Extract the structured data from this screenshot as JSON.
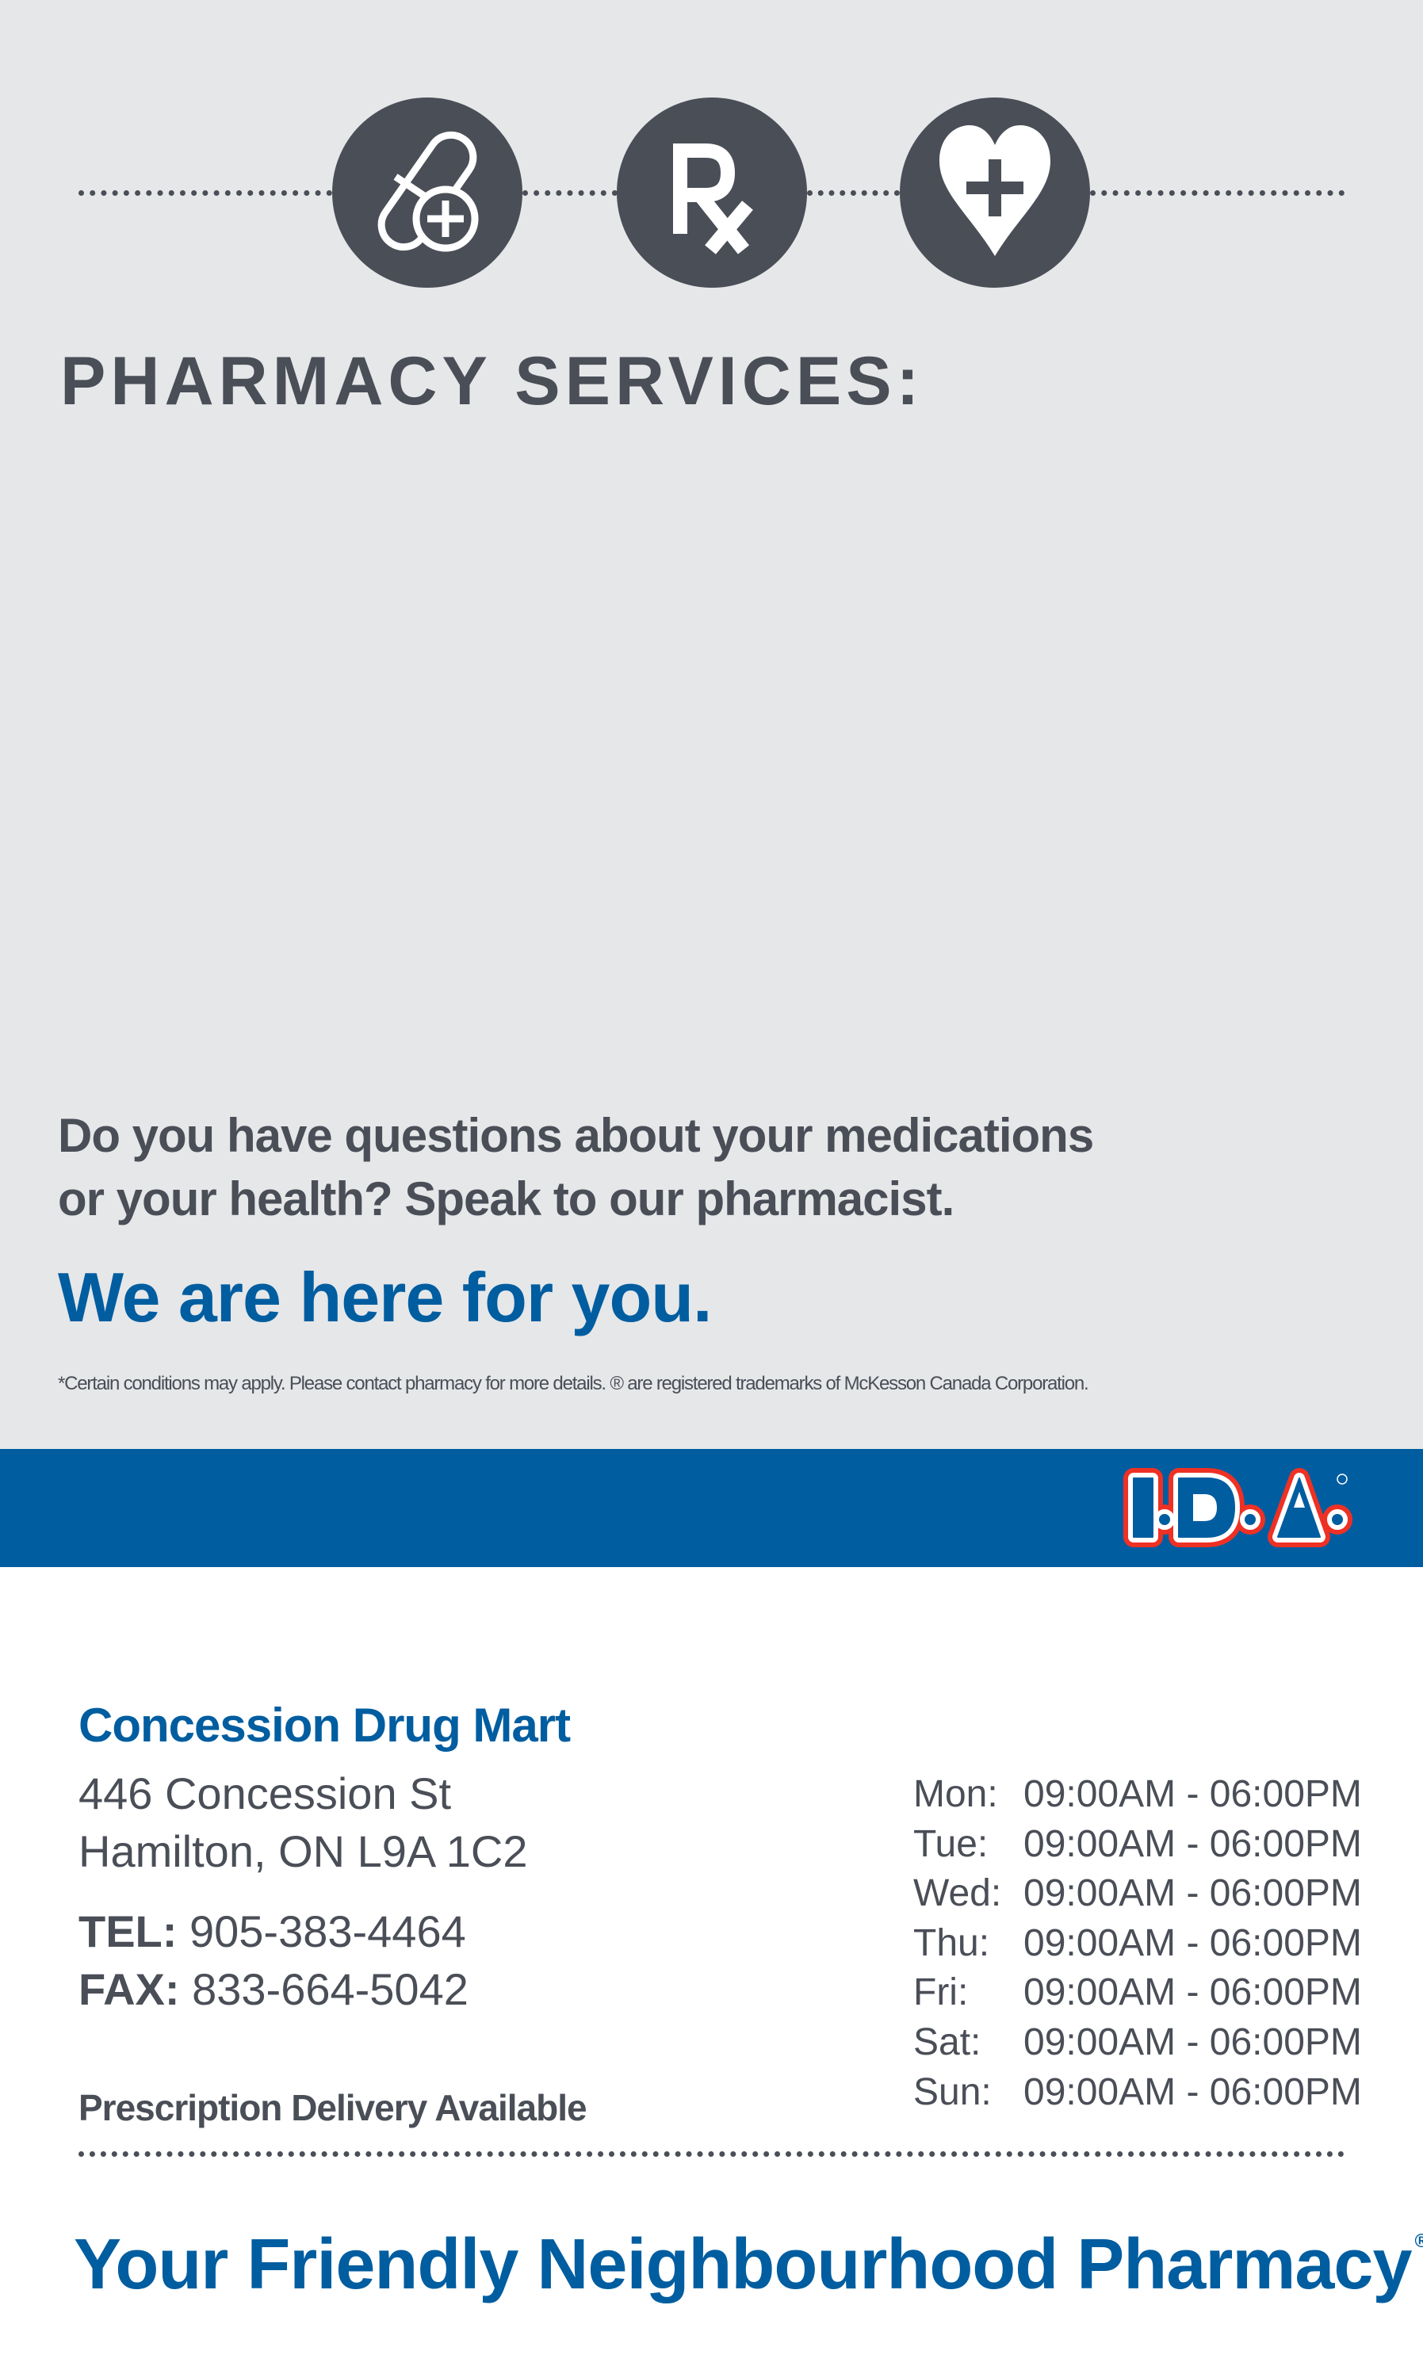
{
  "header": {
    "icons": [
      "pill-plus-icon",
      "rx-icon",
      "heart-plus-icon"
    ],
    "title": "PHARMACY SERVICES:"
  },
  "message": {
    "line1": "Do you have questions about your medications",
    "line2": "or your health? Speak to our pharmacist.",
    "highlight": "We are here for you.",
    "disclaimer": "*Certain conditions may apply. Please contact pharmacy for more details. ® are registered trademarks of McKesson Canada Corporation."
  },
  "brand": {
    "logo_text": "I·D·A®",
    "colors": {
      "blue": "#005da0",
      "red": "#ee3124",
      "dark": "#4a4e57",
      "background": "#e6e7e9"
    }
  },
  "store": {
    "name": "Concession Drug Mart",
    "address_line1": "446 Concession St",
    "address_line2": "Hamilton, ON L9A 1C2",
    "tel_label": "TEL:",
    "tel": "905-383-4464",
    "fax_label": "FAX:",
    "fax": "833-664-5042",
    "delivery": "Prescription Delivery Available"
  },
  "hours": [
    {
      "day": "Mon:",
      "time": "09:00AM - 06:00PM"
    },
    {
      "day": "Tue:",
      "time": "09:00AM - 06:00PM"
    },
    {
      "day": "Wed:",
      "time": "09:00AM - 06:00PM"
    },
    {
      "day": "Thu:",
      "time": "09:00AM - 06:00PM"
    },
    {
      "day": "Fri:",
      "time": "09:00AM - 06:00PM"
    },
    {
      "day": "Sat:",
      "time": "09:00AM - 06:00PM"
    },
    {
      "day": "Sun:",
      "time": "09:00AM - 06:00PM"
    }
  ],
  "footer": {
    "tagline": "Your Friendly Neighbourhood Pharmacy",
    "registered": "®"
  }
}
